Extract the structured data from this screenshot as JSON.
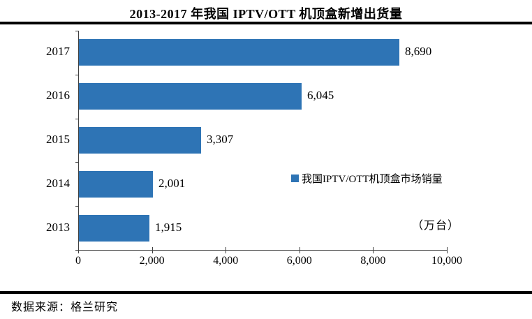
{
  "page": {
    "title": "2013-2017 年我国 IPTV/OTT 机顶盒新增出货量",
    "source_note": "数据来源：格兰研究"
  },
  "colors": {
    "bar": "#2E74B5",
    "axis": "#404040",
    "rule": "#000000"
  },
  "chart_data": {
    "type": "bar",
    "orientation": "horizontal",
    "title": "2013-2017 年我国 IPTV/OTT 机顶盒新增出货量",
    "categories": [
      "2013",
      "2014",
      "2015",
      "2016",
      "2017"
    ],
    "values": [
      1915,
      2001,
      3307,
      6045,
      8690
    ],
    "value_labels": [
      "1,915",
      "2,001",
      "3,307",
      "6,045",
      "8,690"
    ],
    "category_order_top_to_bottom": [
      "2017",
      "2016",
      "2015",
      "2014",
      "2013"
    ],
    "xlim": [
      0,
      10000
    ],
    "x_ticks": [
      0,
      2000,
      4000,
      6000,
      8000,
      10000
    ],
    "x_tick_labels": [
      "0",
      "2,000",
      "4,000",
      "6,000",
      "8,000",
      "10,000"
    ],
    "unit_label": "（万台）",
    "legend": [
      "我国IPTV/OTT机顶盒市场销量"
    ],
    "legend_position": "inside-right",
    "grid": false,
    "data_labels": true
  }
}
